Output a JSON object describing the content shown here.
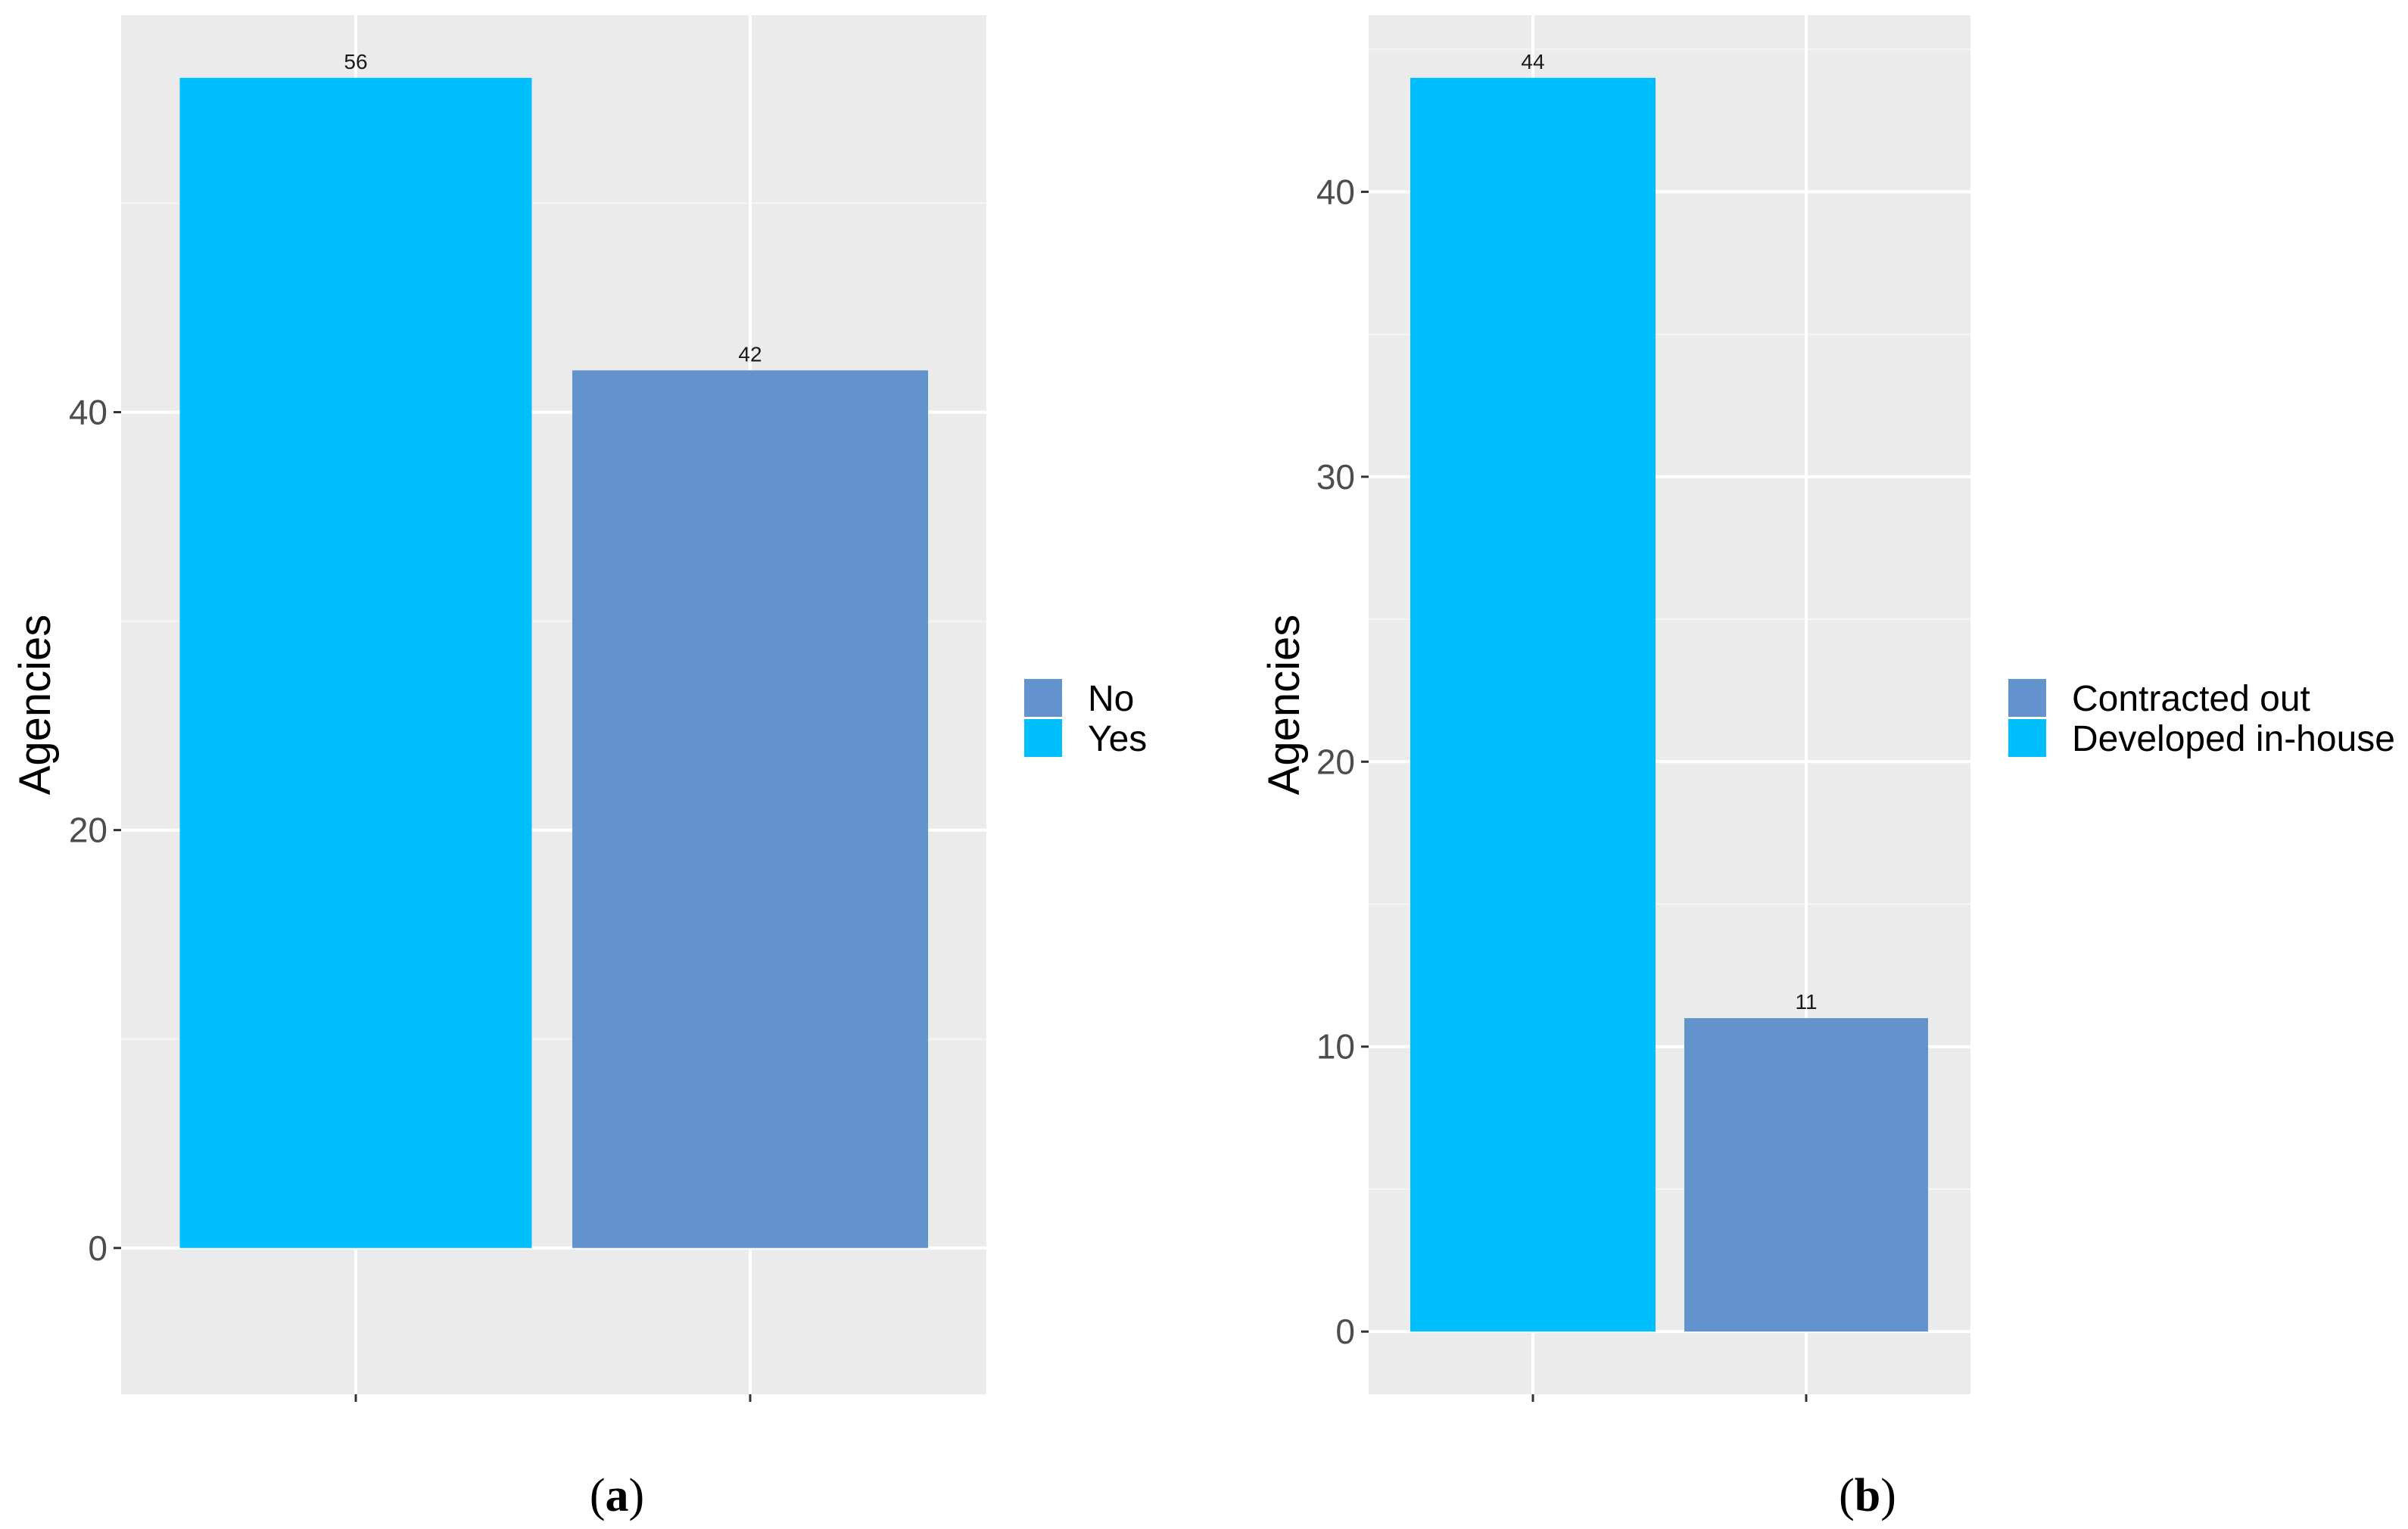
{
  "colors": {
    "panel_background": "#ebebeb",
    "grid_major": "#ffffff",
    "grid_minor": "#f5f5f5",
    "light_blue": "#00bfff",
    "steel_blue": "#6293cc"
  },
  "chart_data": [
    {
      "id": "a",
      "type": "bar",
      "caption_open": "(",
      "caption_letter": "a",
      "caption_close": ")",
      "ylabel": "Agencies",
      "xlabel": "",
      "ylim": [
        -7,
        59
      ],
      "yticks": [
        0,
        20,
        40
      ],
      "ytick_labels": [
        "0",
        "20",
        "40"
      ],
      "yminor": [
        10,
        30,
        50
      ],
      "categories": [
        "Yes",
        "No"
      ],
      "values": [
        56,
        42
      ],
      "data_labels": [
        "56",
        "42"
      ],
      "bar_colors": [
        "#00bfff",
        "#6293cc"
      ],
      "legend": [
        {
          "label": "No",
          "color": "#6293cc"
        },
        {
          "label": "Yes",
          "color": "#00bfff"
        }
      ],
      "legend_position": "right"
    },
    {
      "id": "b",
      "type": "bar",
      "caption_open": "(",
      "caption_letter": "b",
      "caption_close": ")",
      "ylabel": "Agencies",
      "xlabel": "",
      "ylim": [
        -2.2,
        46.2
      ],
      "yticks": [
        0,
        10,
        20,
        30,
        40
      ],
      "ytick_labels": [
        "0",
        "10",
        "20",
        "30",
        "40"
      ],
      "yminor": [
        5,
        15,
        25,
        35,
        45
      ],
      "categories": [
        "Developed in-house",
        "Contracted out"
      ],
      "values": [
        44,
        11
      ],
      "data_labels": [
        "44",
        "11"
      ],
      "bar_colors": [
        "#00bfff",
        "#6293cc"
      ],
      "legend": [
        {
          "label": "Contracted out",
          "color": "#6293cc"
        },
        {
          "label": "Developed in-house",
          "color": "#00bfff"
        }
      ],
      "legend_position": "right"
    }
  ]
}
